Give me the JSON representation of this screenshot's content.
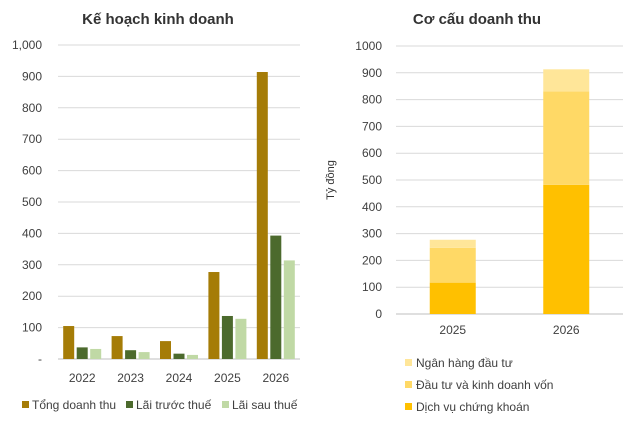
{
  "chart_data": [
    {
      "type": "bar",
      "title": "Kế hoạch kinh doanh",
      "categories": [
        "2022",
        "2023",
        "2024",
        "2025",
        "2026"
      ],
      "ylim": [
        0,
        1000
      ],
      "yticks": [
        "-",
        "100",
        "200",
        "300",
        "400",
        "500",
        "600",
        "700",
        "800",
        "900",
        "1,000"
      ],
      "grid": true,
      "legend_position": "bottom",
      "series": [
        {
          "name": "Tổng doanh thu",
          "color": "#a57c07",
          "values": [
            105,
            73,
            57,
            277,
            914
          ]
        },
        {
          "name": "Lãi trước thuế",
          "color": "#4c6a2d",
          "values": [
            37,
            28,
            17,
            137,
            393
          ]
        },
        {
          "name": "Lãi sau thuế",
          "color": "#c0d9a5",
          "values": [
            32,
            22,
            13,
            128,
            314
          ]
        }
      ]
    },
    {
      "type": "bar",
      "stacked": true,
      "title": "Cơ cấu doanh thu",
      "ylabel": "Tỷ đồng",
      "categories": [
        "2025",
        "2026"
      ],
      "ylim": [
        0,
        1000
      ],
      "yticks": [
        "0",
        "100",
        "200",
        "300",
        "400",
        "500",
        "600",
        "700",
        "800",
        "900",
        "1000"
      ],
      "grid": true,
      "legend_position": "bottom",
      "series": [
        {
          "name": "Dịch vụ chứng khoán",
          "color": "#ffc000",
          "values": [
            117,
            482
          ]
        },
        {
          "name": "Đầu tư và kinh doanh vốn",
          "color": "#ffd966",
          "values": [
            130,
            349
          ]
        },
        {
          "name": "Ngân hàng đầu tư",
          "color": "#ffe699",
          "values": [
            30,
            82
          ]
        }
      ],
      "legend_order": [
        2,
        1,
        0
      ]
    }
  ]
}
